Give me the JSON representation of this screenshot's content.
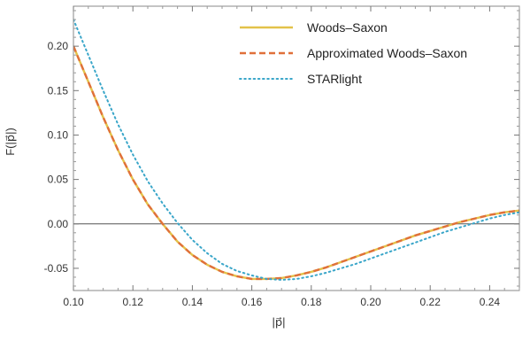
{
  "chart_data": {
    "type": "line",
    "xlabel": "|p⃗|",
    "ylabel": "F(|p⃗|)",
    "xlim": [
      0.1,
      0.25
    ],
    "ylim": [
      -0.075,
      0.245
    ],
    "x_ticks": [
      0.1,
      0.12,
      0.14,
      0.16,
      0.18,
      0.2,
      0.22,
      0.24
    ],
    "x_tick_labels": [
      "0.10",
      "0.12",
      "0.14",
      "0.16",
      "0.18",
      "0.20",
      "0.22",
      "0.24"
    ],
    "y_ticks": [
      -0.05,
      0.0,
      0.05,
      0.1,
      0.15,
      0.2
    ],
    "y_tick_labels": [
      "-0.05",
      "0.00",
      "0.05",
      "0.10",
      "0.15",
      "0.20"
    ],
    "grid": false,
    "zero_line": true,
    "legend_position": "top-right",
    "series": [
      {
        "name": "Woods–Saxon",
        "style": "solid",
        "color": "#e3c24a",
        "x": [
          0.1,
          0.105,
          0.11,
          0.115,
          0.12,
          0.125,
          0.13,
          0.135,
          0.14,
          0.145,
          0.15,
          0.155,
          0.16,
          0.165,
          0.17,
          0.175,
          0.18,
          0.185,
          0.19,
          0.195,
          0.2,
          0.205,
          0.21,
          0.215,
          0.22,
          0.225,
          0.23,
          0.235,
          0.24,
          0.245,
          0.25
        ],
        "y": [
          0.2,
          0.16,
          0.12,
          0.083,
          0.05,
          0.022,
          0.0,
          -0.02,
          -0.035,
          -0.046,
          -0.054,
          -0.059,
          -0.062,
          -0.062,
          -0.061,
          -0.058,
          -0.054,
          -0.049,
          -0.043,
          -0.037,
          -0.031,
          -0.025,
          -0.019,
          -0.013,
          -0.008,
          -0.003,
          0.002,
          0.006,
          0.01,
          0.013,
          0.015
        ]
      },
      {
        "name": "Approximated Woods–Saxon",
        "style": "dashed",
        "color": "#e0703a",
        "x": [
          0.1,
          0.105,
          0.11,
          0.115,
          0.12,
          0.125,
          0.13,
          0.135,
          0.14,
          0.145,
          0.15,
          0.155,
          0.16,
          0.165,
          0.17,
          0.175,
          0.18,
          0.185,
          0.19,
          0.195,
          0.2,
          0.205,
          0.21,
          0.215,
          0.22,
          0.225,
          0.23,
          0.235,
          0.24,
          0.245,
          0.25
        ],
        "y": [
          0.2,
          0.16,
          0.12,
          0.083,
          0.05,
          0.022,
          0.0,
          -0.02,
          -0.035,
          -0.046,
          -0.054,
          -0.059,
          -0.062,
          -0.062,
          -0.061,
          -0.058,
          -0.054,
          -0.049,
          -0.043,
          -0.037,
          -0.031,
          -0.025,
          -0.019,
          -0.013,
          -0.008,
          -0.003,
          0.002,
          0.006,
          0.01,
          0.013,
          0.015
        ]
      },
      {
        "name": "STARlight",
        "style": "dotted",
        "color": "#3aa6c9",
        "x": [
          0.1,
          0.105,
          0.11,
          0.115,
          0.12,
          0.125,
          0.13,
          0.135,
          0.14,
          0.145,
          0.15,
          0.155,
          0.16,
          0.165,
          0.17,
          0.175,
          0.18,
          0.185,
          0.19,
          0.195,
          0.2,
          0.205,
          0.21,
          0.215,
          0.22,
          0.225,
          0.23,
          0.235,
          0.24,
          0.245,
          0.25
        ],
        "y": [
          0.23,
          0.19,
          0.15,
          0.112,
          0.078,
          0.048,
          0.023,
          0.001,
          -0.018,
          -0.033,
          -0.045,
          -0.053,
          -0.058,
          -0.062,
          -0.063,
          -0.062,
          -0.059,
          -0.055,
          -0.05,
          -0.045,
          -0.039,
          -0.033,
          -0.027,
          -0.021,
          -0.015,
          -0.009,
          -0.004,
          0.001,
          0.006,
          0.01,
          0.013
        ]
      }
    ]
  }
}
